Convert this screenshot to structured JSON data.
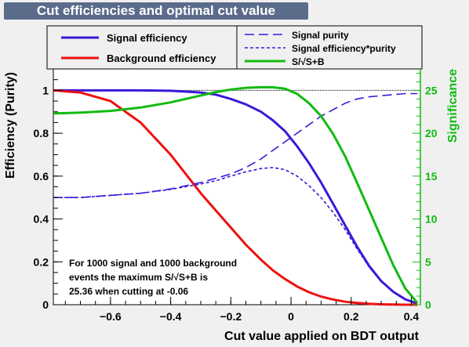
{
  "chart_data": {
    "type": "line",
    "title": "Cut efficiencies and optimal cut value",
    "xlabel": "Cut value applied on BDT output",
    "ylabel": "Efficiency (Purity)",
    "y2label": "Significance",
    "xlim": [
      -0.79,
      0.43
    ],
    "ylim": [
      0,
      1.1
    ],
    "y2lim": [
      0,
      27.5
    ],
    "xticks": [
      "−0.6",
      "−0.4",
      "−0.2",
      "0",
      "0.2",
      "0.4"
    ],
    "xtick_values": [
      -0.6,
      -0.4,
      -0.2,
      0,
      0.2,
      0.4
    ],
    "yticks": [
      "0",
      "0.2",
      "0.4",
      "0.6",
      "0.8",
      "1"
    ],
    "ytick_values": [
      0,
      0.2,
      0.4,
      0.6,
      0.8,
      1.0
    ],
    "y2ticks": [
      "0",
      "5",
      "10",
      "15",
      "20",
      "25"
    ],
    "y2tick_values": [
      0,
      5,
      10,
      15,
      20,
      25
    ],
    "x": [
      -0.79,
      -0.7,
      -0.6,
      -0.5,
      -0.4,
      -0.3,
      -0.25,
      -0.2,
      -0.15,
      -0.1,
      -0.06,
      -0.02,
      0.02,
      0.06,
      0.1,
      0.14,
      0.18,
      0.22,
      0.26,
      0.3,
      0.34,
      0.38,
      0.42
    ],
    "series": [
      {
        "name": "Signal efficiency",
        "color": "#3c18d8",
        "axis": "left",
        "dash": "solid",
        "values": [
          1.0,
          1.0,
          1.0,
          1.0,
          0.998,
          0.99,
          0.98,
          0.96,
          0.935,
          0.9,
          0.86,
          0.81,
          0.74,
          0.66,
          0.57,
          0.47,
          0.37,
          0.27,
          0.18,
          0.11,
          0.06,
          0.025,
          0.005
        ]
      },
      {
        "name": "Background efficiency",
        "color": "#ee1111",
        "axis": "left",
        "dash": "solid",
        "values": [
          1.0,
          0.99,
          0.95,
          0.85,
          0.7,
          0.52,
          0.44,
          0.36,
          0.28,
          0.21,
          0.16,
          0.12,
          0.085,
          0.058,
          0.038,
          0.024,
          0.014,
          0.008,
          0.004,
          0.002,
          0.001,
          0.0,
          0.0
        ]
      },
      {
        "name": "Signal purity",
        "color": "#3c18d8",
        "axis": "left",
        "dash": "long",
        "values": [
          0.5,
          0.5,
          0.51,
          0.52,
          0.54,
          0.57,
          0.59,
          0.61,
          0.64,
          0.68,
          0.72,
          0.76,
          0.8,
          0.84,
          0.88,
          0.91,
          0.94,
          0.96,
          0.97,
          0.975,
          0.98,
          0.985,
          0.985
        ]
      },
      {
        "name": "Signal efficiency*purity",
        "color": "#3c18d8",
        "axis": "left",
        "dash": "short",
        "values": [
          0.5,
          0.5,
          0.51,
          0.52,
          0.538,
          0.563,
          0.578,
          0.6,
          0.62,
          0.635,
          0.64,
          0.63,
          0.6,
          0.555,
          0.5,
          0.43,
          0.35,
          0.26,
          0.175,
          0.107,
          0.059,
          0.025,
          0.005
        ]
      },
      {
        "name": "S/√S+B",
        "color": "#11bb11",
        "axis": "right",
        "dash": "solid",
        "values": [
          22.3,
          22.4,
          22.6,
          23.0,
          23.6,
          24.4,
          24.8,
          25.1,
          25.3,
          25.36,
          25.36,
          25.2,
          24.6,
          23.5,
          22.0,
          19.9,
          17.3,
          14.2,
          11.0,
          7.8,
          4.6,
          1.9,
          0.2
        ]
      }
    ],
    "annotation": [
      "For 1000 signal and 1000 background",
      "events the maximum S/√S+B is",
      "25.36 when cutting at -0.06"
    ],
    "legend_position": "top",
    "grid": false
  }
}
